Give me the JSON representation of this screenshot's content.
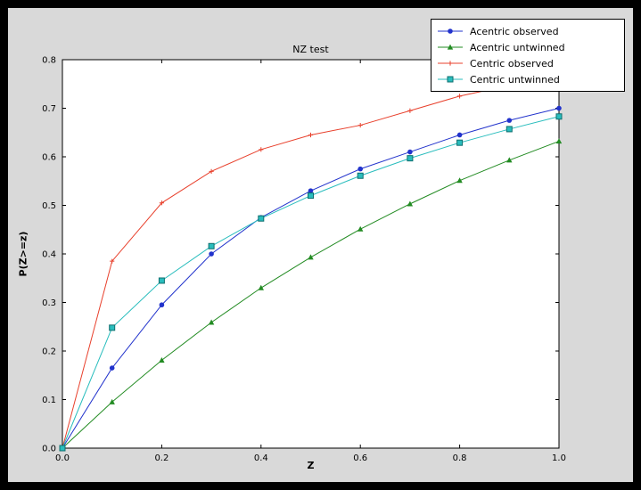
{
  "window": {
    "background": "#000000",
    "figure_bg": "#d9d9d9",
    "plot_bg": "#ffffff",
    "frame_color": "#000000",
    "tick_color": "#000000",
    "text_color": "#000000"
  },
  "chart_data": {
    "type": "line",
    "title": "NZ test",
    "xlabel": "Z",
    "ylabel": "P(Z>=z)",
    "xlim": [
      0.0,
      1.0
    ],
    "ylim": [
      0.0,
      0.8
    ],
    "x_ticks": [
      0.0,
      0.2,
      0.4,
      0.6,
      0.8,
      1.0
    ],
    "y_ticks": [
      0.0,
      0.1,
      0.2,
      0.3,
      0.4,
      0.5,
      0.6,
      0.7,
      0.8
    ],
    "grid": false,
    "legend": {
      "position": "upper right"
    },
    "x": [
      0.0,
      0.1,
      0.2,
      0.3,
      0.4,
      0.5,
      0.6,
      0.7,
      0.8,
      0.9,
      1.0
    ],
    "series": [
      {
        "name": "Acentric observed",
        "color": "#2233cc",
        "marker": "circle",
        "values": [
          0.0,
          0.165,
          0.295,
          0.4,
          0.475,
          0.53,
          0.575,
          0.61,
          0.645,
          0.675,
          0.7
        ]
      },
      {
        "name": "Acentric untwinned",
        "color": "#228b22",
        "marker": "triangle",
        "values": [
          0.0,
          0.095,
          0.181,
          0.259,
          0.33,
          0.393,
          0.451,
          0.503,
          0.551,
          0.593,
          0.632
        ]
      },
      {
        "name": "Centric observed",
        "color": "#e8402c",
        "marker": "plus",
        "values": [
          0.0,
          0.385,
          0.505,
          0.57,
          0.615,
          0.645,
          0.665,
          0.695,
          0.725,
          0.747,
          0.765
        ]
      },
      {
        "name": "Centric untwinned",
        "color": "#29bdbd",
        "marker": "square",
        "marker_fill": "#29bdbd",
        "marker_edge": "#0e6e6e",
        "values": [
          0.0,
          0.248,
          0.345,
          0.416,
          0.473,
          0.52,
          0.561,
          0.597,
          0.629,
          0.657,
          0.683
        ]
      }
    ]
  }
}
